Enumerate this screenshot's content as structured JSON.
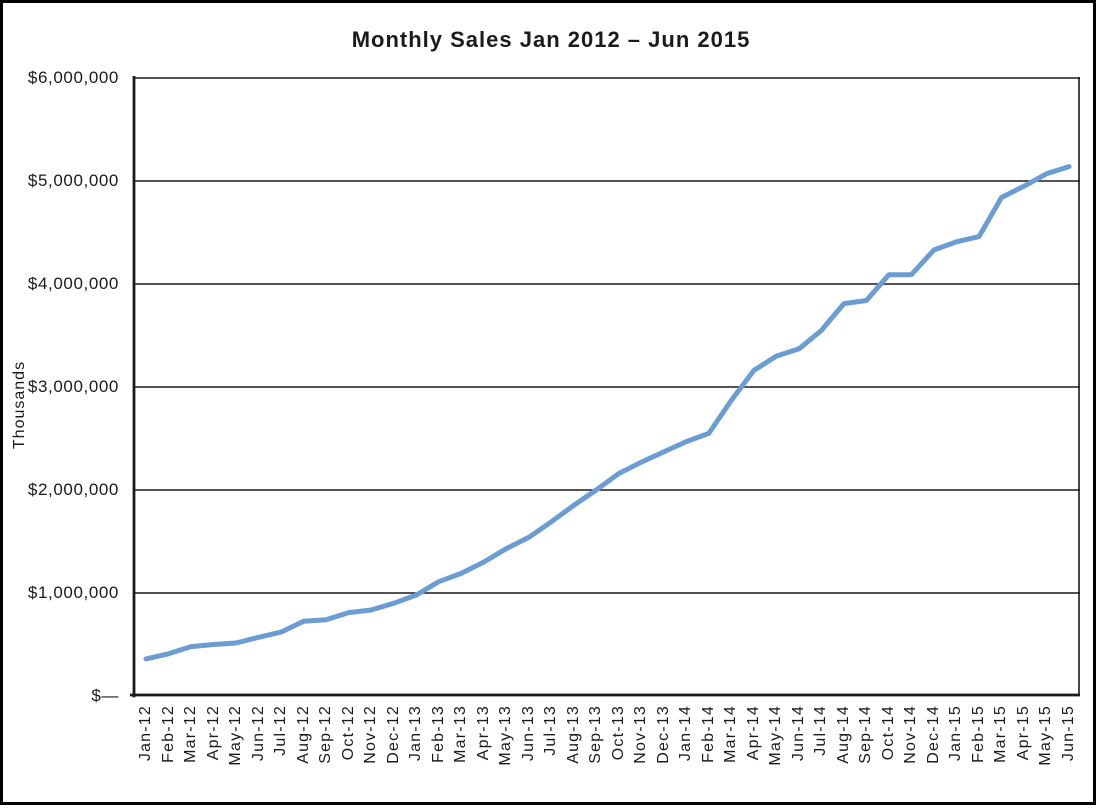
{
  "window": {
    "background": "#ffffff",
    "border_color": "#000000",
    "text_color": "#1b1b1b"
  },
  "chart_data": {
    "type": "line",
    "title": "Monthly Sales Jan 2012 – Jun 2015",
    "xlabel": "",
    "ylabel": "Thousands",
    "legend": "none",
    "grid": "horizontal",
    "line_color": "#6B9DD3",
    "gridline_color": "#1a1a1a",
    "ylim": [
      0,
      6000000
    ],
    "y_ticks": [
      {
        "value": 0,
        "label": "$—"
      },
      {
        "value": 1000000,
        "label": "$1,000,000"
      },
      {
        "value": 2000000,
        "label": "$2,000,000"
      },
      {
        "value": 3000000,
        "label": "$3,000,000"
      },
      {
        "value": 4000000,
        "label": "$4,000,000"
      },
      {
        "value": 5000000,
        "label": "$5,000,000"
      },
      {
        "value": 6000000,
        "label": "$6,000,000"
      }
    ],
    "categories": [
      "Jan-12",
      "Feb-12",
      "Mar-12",
      "Apr-12",
      "May-12",
      "Jun-12",
      "Jul-12",
      "Aug-12",
      "Sep-12",
      "Oct-12",
      "Nov-12",
      "Dec-12",
      "Jan-13",
      "Feb-13",
      "Mar-13",
      "Apr-13",
      "May-13",
      "Jun-13",
      "Jul-13",
      "Aug-13",
      "Sep-13",
      "Oct-13",
      "Nov-13",
      "Dec-13",
      "Jan-14",
      "Feb-14",
      "Mar-14",
      "Apr-14",
      "May-14",
      "Jun-14",
      "Jul-14",
      "Aug-14",
      "Sep-14",
      "Oct-14",
      "Nov-14",
      "Dec-14",
      "Jan-15",
      "Feb-15",
      "Mar-15",
      "Apr-15",
      "May-15",
      "Jun-15"
    ],
    "series": [
      {
        "name": "Monthly Sales",
        "values": [
          360000,
          410000,
          480000,
          500000,
          515000,
          570000,
          620000,
          725000,
          740000,
          810000,
          835000,
          900000,
          980000,
          1110000,
          1190000,
          1300000,
          1430000,
          1540000,
          1690000,
          1850000,
          2000000,
          2160000,
          2270000,
          2370000,
          2470000,
          2550000,
          2870000,
          3160000,
          3300000,
          3370000,
          3550000,
          3810000,
          3840000,
          4090000,
          4090000,
          4330000,
          4410000,
          4460000,
          4840000,
          4950000,
          5070000,
          5140000
        ]
      }
    ]
  }
}
